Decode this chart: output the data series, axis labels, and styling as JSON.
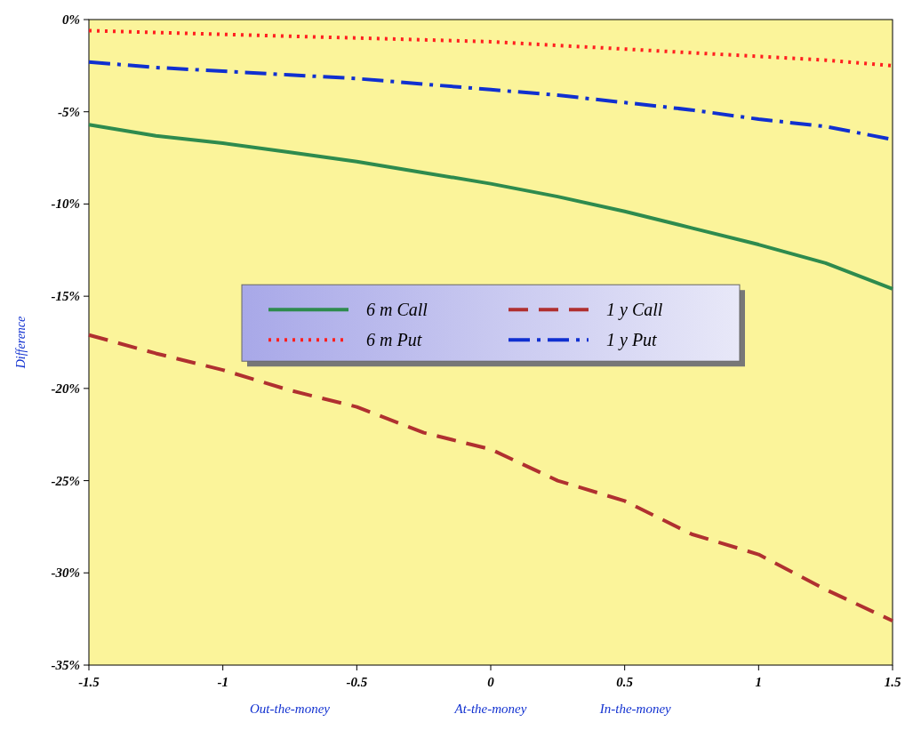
{
  "chart_data": {
    "type": "line",
    "ylabel": "Difference",
    "x": [
      -1.5,
      -1.25,
      -1,
      -0.75,
      -0.5,
      -0.25,
      0,
      0.25,
      0.5,
      0.75,
      1,
      1.25,
      1.5
    ],
    "series": [
      {
        "name": "6 m Call",
        "color": "#2e8b4e",
        "line_style": "solid",
        "values": [
          -5.7,
          -6.3,
          -6.7,
          -7.2,
          -7.7,
          -8.3,
          -8.9,
          -9.6,
          -10.4,
          -11.3,
          -12.2,
          -13.2,
          -14.6
        ]
      },
      {
        "name": "1 y Call",
        "color": "#b03030",
        "line_style": "dashed",
        "values": [
          -17.1,
          -18.1,
          -19.0,
          -20.1,
          -21.0,
          -22.4,
          -23.3,
          -25.0,
          -26.1,
          -27.9,
          -29.0,
          -30.9,
          -32.6
        ]
      },
      {
        "name": "6 m Put",
        "color": "#ff2020",
        "line_style": "dotted",
        "values": [
          -0.6,
          -0.7,
          -0.8,
          -0.9,
          -1.0,
          -1.1,
          -1.2,
          -1.4,
          -1.6,
          -1.8,
          -2.0,
          -2.2,
          -2.5
        ]
      },
      {
        "name": "1 y Put",
        "color": "#1030d0",
        "line_style": "dashdot",
        "values": [
          -2.3,
          -2.6,
          -2.8,
          -3.0,
          -3.2,
          -3.5,
          -3.8,
          -4.1,
          -4.5,
          -4.9,
          -5.4,
          -5.8,
          -6.5
        ]
      }
    ],
    "xlim": [
      -1.5,
      1.5
    ],
    "xticks": [
      -1.5,
      -1,
      -0.5,
      0,
      0.5,
      1,
      1.5
    ],
    "ylim": [
      -35,
      0
    ],
    "yticks": [
      {
        "value": -35,
        "label": "-35%"
      },
      {
        "value": -30,
        "label": "-30%"
      },
      {
        "value": -25,
        "label": "-25%"
      },
      {
        "value": -20,
        "label": "-20%"
      },
      {
        "value": -15,
        "label": "-15%"
      },
      {
        "value": -10,
        "label": "-10%"
      },
      {
        "value": -5,
        "label": "-5%"
      },
      {
        "value": 0,
        "label": "0%"
      }
    ],
    "annotations": [
      "Out-the-money",
      "At-the-money",
      "In-the-money"
    ],
    "grid": false,
    "legend": "center",
    "marker": "none"
  }
}
